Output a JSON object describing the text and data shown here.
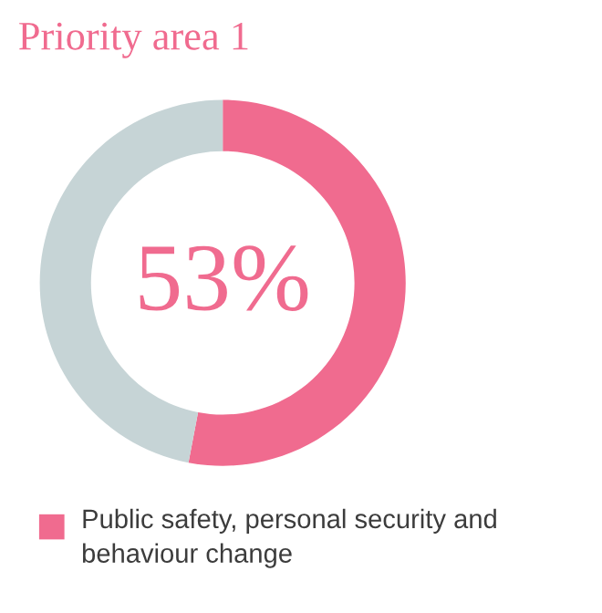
{
  "chart_data": {
    "type": "donut",
    "title": "Priority area 1",
    "categories": [
      "Public safety, personal security and behaviour change",
      null
    ],
    "values": [
      53,
      47
    ],
    "colors": [
      "#f06b8f",
      "#c6d4d6"
    ],
    "annotations": [
      "53%"
    ],
    "legend": "bottom"
  }
}
